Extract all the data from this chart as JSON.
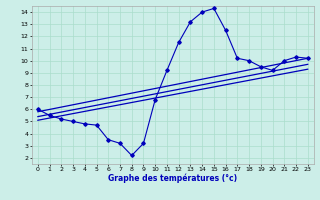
{
  "xlabel": "Graphe des températures (°c)",
  "x_hours": [
    0,
    1,
    2,
    3,
    4,
    5,
    6,
    7,
    8,
    9,
    10,
    11,
    12,
    13,
    14,
    15,
    16,
    17,
    18,
    19,
    20,
    21,
    22,
    23
  ],
  "temp_main": [
    6.0,
    5.5,
    5.2,
    5.0,
    4.8,
    4.7,
    3.5,
    3.2,
    2.2,
    3.2,
    6.8,
    9.2,
    11.5,
    13.2,
    14.0,
    14.3,
    12.5,
    10.2,
    10.0,
    9.5,
    9.2,
    10.0,
    10.3,
    10.2
  ],
  "reg_line1": [
    5.8,
    10.2
  ],
  "reg_line2": [
    5.4,
    9.7
  ],
  "reg_line3": [
    5.1,
    9.3
  ],
  "line_color": "#0000bb",
  "bg_color": "#cceee8",
  "grid_color": "#aaddcc",
  "xlim": [
    -0.5,
    23.5
  ],
  "ylim": [
    1.5,
    14.5
  ],
  "yticks": [
    2,
    3,
    4,
    5,
    6,
    7,
    8,
    9,
    10,
    11,
    12,
    13,
    14
  ],
  "xticks": [
    0,
    1,
    2,
    3,
    4,
    5,
    6,
    7,
    8,
    9,
    10,
    11,
    12,
    13,
    14,
    15,
    16,
    17,
    18,
    19,
    20,
    21,
    22,
    23
  ]
}
